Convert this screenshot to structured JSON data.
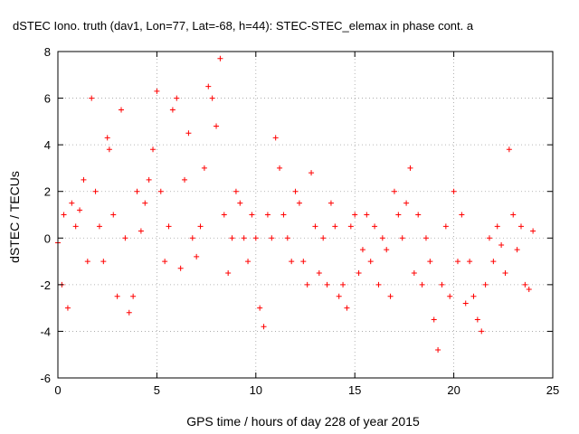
{
  "chart_data": {
    "type": "scatter",
    "title": "dSTEC Iono. truth (dav1, Lon=77, Lat=-68, h=44): STEC-STEC_elemax in phase cont. a",
    "xlabel": "GPS time / hours of day 228 of year 2015",
    "ylabel": "dSTEC  / TECUs",
    "xlim": [
      0,
      25
    ],
    "ylim": [
      -6,
      8
    ],
    "x_ticks": [
      0,
      5,
      10,
      15,
      20,
      25
    ],
    "y_ticks": [
      -6,
      -4,
      -2,
      0,
      2,
      4,
      6,
      8
    ],
    "grid": true,
    "marker": "+",
    "color": "#ff0000",
    "series": [
      {
        "name": "dSTEC",
        "x": [
          0.0,
          0.2,
          0.3,
          0.5,
          0.7,
          0.9,
          1.1,
          1.3,
          1.5,
          1.7,
          1.9,
          2.1,
          2.3,
          2.5,
          2.6,
          2.8,
          3.0,
          3.2,
          3.4,
          3.6,
          3.8,
          4.0,
          4.2,
          4.4,
          4.6,
          4.8,
          5.0,
          5.2,
          5.4,
          5.6,
          5.8,
          6.0,
          6.2,
          6.4,
          6.6,
          6.8,
          7.0,
          7.2,
          7.4,
          7.6,
          7.8,
          8.0,
          8.2,
          8.4,
          8.6,
          8.8,
          9.0,
          9.2,
          9.4,
          9.6,
          9.8,
          10.0,
          10.2,
          10.4,
          10.6,
          10.8,
          11.0,
          11.2,
          11.4,
          11.6,
          11.8,
          12.0,
          12.2,
          12.4,
          12.6,
          12.8,
          13.0,
          13.2,
          13.4,
          13.6,
          13.8,
          14.0,
          14.2,
          14.4,
          14.6,
          14.8,
          15.0,
          15.2,
          15.4,
          15.6,
          15.8,
          16.0,
          16.2,
          16.4,
          16.6,
          16.8,
          17.0,
          17.2,
          17.4,
          17.6,
          17.8,
          18.0,
          18.2,
          18.4,
          18.6,
          18.8,
          19.0,
          19.2,
          19.4,
          19.6,
          19.8,
          20.0,
          20.2,
          20.4,
          20.6,
          20.8,
          21.0,
          21.2,
          21.4,
          21.6,
          21.8,
          22.0,
          22.2,
          22.4,
          22.6,
          22.8,
          23.0,
          23.2,
          23.4,
          23.6,
          23.8,
          24.0
        ],
        "y": [
          -0.2,
          -2.0,
          1.0,
          -3.0,
          1.5,
          0.5,
          1.2,
          2.5,
          -1.0,
          6.0,
          2.0,
          0.5,
          -1.0,
          4.3,
          3.8,
          1.0,
          -2.5,
          5.5,
          0.0,
          -3.2,
          -2.5,
          2.0,
          0.3,
          1.5,
          2.5,
          3.8,
          6.3,
          2.0,
          -1.0,
          0.5,
          5.5,
          6.0,
          -1.3,
          2.5,
          4.5,
          0.0,
          -0.8,
          0.5,
          3.0,
          6.5,
          6.0,
          4.8,
          7.7,
          1.0,
          -1.5,
          0.0,
          2.0,
          1.5,
          0.0,
          -1.0,
          1.0,
          0.0,
          -3.0,
          -3.8,
          1.0,
          0.0,
          4.3,
          3.0,
          1.0,
          0.0,
          -1.0,
          2.0,
          1.5,
          -1.0,
          -2.0,
          2.8,
          0.5,
          -1.5,
          0.0,
          -2.0,
          1.5,
          0.5,
          -2.5,
          -2.0,
          -3.0,
          0.5,
          1.0,
          -1.5,
          -0.5,
          1.0,
          -1.0,
          0.5,
          -2.0,
          0.0,
          -0.5,
          -2.5,
          2.0,
          1.0,
          0.0,
          1.5,
          3.0,
          -1.5,
          1.0,
          -2.0,
          0.0,
          -1.0,
          -3.5,
          -4.8,
          -2.0,
          0.5,
          -2.5,
          2.0,
          -1.0,
          1.0,
          -2.8,
          -1.0,
          -2.5,
          -3.5,
          -4.0,
          -2.0,
          0.0,
          -1.0,
          0.5,
          -0.3,
          -1.5,
          3.8,
          1.0,
          -0.5,
          0.5,
          -2.0,
          -2.2,
          0.3
        ]
      }
    ]
  }
}
